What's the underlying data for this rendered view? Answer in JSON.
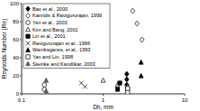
{
  "chart_data": {
    "type": "scatter",
    "x_label": "Dh, mm",
    "y_label": "Reynolds Number (Re)",
    "log": "x",
    "xlim": [
      0.1,
      10
    ],
    "xticks": [
      0.1,
      1,
      10
    ],
    "ylim": [
      0,
      100
    ],
    "yticks": [
      0,
      20,
      40,
      60,
      80,
      100
    ],
    "legend": "upper-left",
    "series": [
      {
        "name": "Bao et al., 2000",
        "color": "#000000",
        "marker": "diamond",
        "x": [
          1.95,
          1.95,
          1.95
        ],
        "values": [
          10,
          16,
          22
        ]
      },
      {
        "name": "Kamidis & Ravigururajan, 1999",
        "color": "#000000",
        "marker": "diamond-open",
        "x": [
          2.3,
          2.6,
          3.0
        ],
        "values": [
          92,
          78,
          60
        ]
      },
      {
        "name": "Yen et al., 2003",
        "color": "#000000",
        "marker": "circle-open",
        "x": [
          0.19,
          0.19
        ],
        "values": [
          5,
          10
        ]
      },
      {
        "name": "Kim and Bang, 2001",
        "color": "#000000",
        "marker": "triangle-open",
        "x": [
          1.0,
          1.5,
          2.0
        ],
        "values": [
          15,
          10,
          8
        ]
      },
      {
        "name": "Lin et al., 2001",
        "color": "#000000",
        "marker": "square",
        "x": [
          1.5,
          1.6
        ],
        "values": [
          5,
          12
        ]
      },
      {
        "name": "Ravigururajan et al., 1996",
        "color": "#000000",
        "marker": "x",
        "x": [
          0.54,
          0.6
        ],
        "values": [
          12,
          8
        ]
      },
      {
        "name": "Wambsganss, et al., 1993",
        "color": "#000000",
        "marker": "triangle",
        "x": [
          2.92,
          2.92
        ],
        "values": [
          20,
          35
        ]
      },
      {
        "name": "Yan and Lin, 1998",
        "color": "#000000",
        "marker": "square-open",
        "x": [
          2.0,
          2.0
        ],
        "values": [
          2,
          6
        ]
      },
      {
        "name": "Steinke and Kandlikar, 2003",
        "color": "#555555",
        "marker": "triangle",
        "x": [
          0.2,
          0.2
        ],
        "values": [
          3,
          15
        ]
      }
    ]
  }
}
